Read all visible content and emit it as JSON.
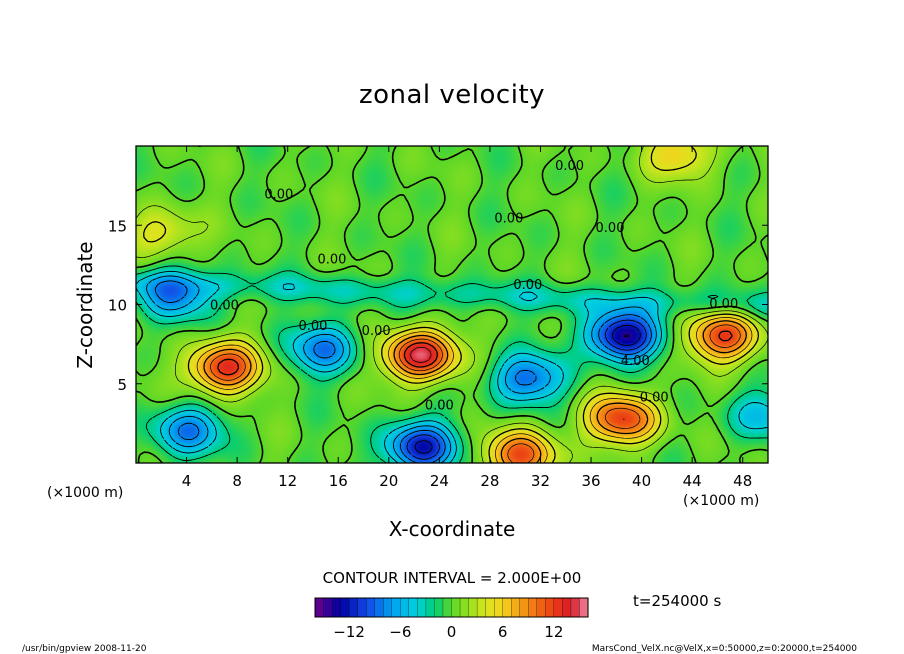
{
  "chart_data": {
    "type": "heatmap",
    "title": "zonal velocity",
    "xlabel": "X-coordinate",
    "ylabel": "Z-coordinate",
    "x_unit": "(×1000 m)",
    "z_unit": "(×1000 m)",
    "xlim": [
      0,
      50
    ],
    "ylim": [
      0,
      20
    ],
    "x_ticks": [
      4,
      8,
      12,
      16,
      20,
      24,
      28,
      32,
      36,
      40,
      44,
      48
    ],
    "y_ticks": [
      5,
      10,
      15
    ],
    "contour_interval_text": "CONTOUR INTERVAL = 2.000E+00",
    "time_text": "t=254000 s",
    "colorbar": {
      "range": [
        -16,
        16
      ],
      "ticks": [
        -12,
        -6,
        0,
        6,
        12
      ],
      "tick_labels": [
        "−12",
        "−6",
        "0",
        "6",
        "12"
      ]
    },
    "contour_labels": [
      {
        "text": "0.00",
        "x": 34.3,
        "z": 18.7
      },
      {
        "text": "0.00",
        "x": 11.3,
        "z": 16.9
      },
      {
        "text": "0.00",
        "x": 29.5,
        "z": 15.4
      },
      {
        "text": "0.00",
        "x": 37.5,
        "z": 14.8
      },
      {
        "text": "0.00",
        "x": 15.5,
        "z": 12.8
      },
      {
        "text": "0.00",
        "x": 31.0,
        "z": 11.2
      },
      {
        "text": "0.00",
        "x": 7.0,
        "z": 9.9
      },
      {
        "text": "0.00",
        "x": 46.5,
        "z": 10.0
      },
      {
        "text": "0.00",
        "x": 14.0,
        "z": 8.6
      },
      {
        "text": "0.00",
        "x": 19.0,
        "z": 8.3
      },
      {
        "text": "4.00",
        "x": 39.5,
        "z": 6.4
      },
      {
        "text": "0.00",
        "x": 24.0,
        "z": 3.6
      },
      {
        "text": "0.00",
        "x": 41.0,
        "z": 4.1
      }
    ],
    "features": [
      {
        "x": 7.0,
        "z": 6.0,
        "u": 13
      },
      {
        "x": 22.5,
        "z": 6.8,
        "u": 15
      },
      {
        "x": 46.5,
        "z": 8.0,
        "u": 12
      },
      {
        "x": 38.5,
        "z": 2.8,
        "u": 12
      },
      {
        "x": 30.5,
        "z": 0.5,
        "u": 11
      },
      {
        "x": 4.0,
        "z": 2.0,
        "u": -8
      },
      {
        "x": 14.8,
        "z": 7.2,
        "u": -8
      },
      {
        "x": 22.5,
        "z": 1.0,
        "u": -12
      },
      {
        "x": 31.0,
        "z": 5.3,
        "u": -9
      },
      {
        "x": 38.5,
        "z": 8.0,
        "u": -14
      },
      {
        "x": 49.5,
        "z": 3.0,
        "u": -5
      },
      {
        "x": 3.0,
        "z": 10.5,
        "u": -7
      },
      {
        "x": 2.0,
        "z": 14.5,
        "u": 5
      },
      {
        "x": 43.0,
        "z": 19.5,
        "u": 6
      }
    ]
  },
  "footer": {
    "left": "/usr/bin/gpview  2008-11-20",
    "right": "MarsCond_VelX.nc@VelX,x=0:50000,z=0:20000,t=254000"
  }
}
